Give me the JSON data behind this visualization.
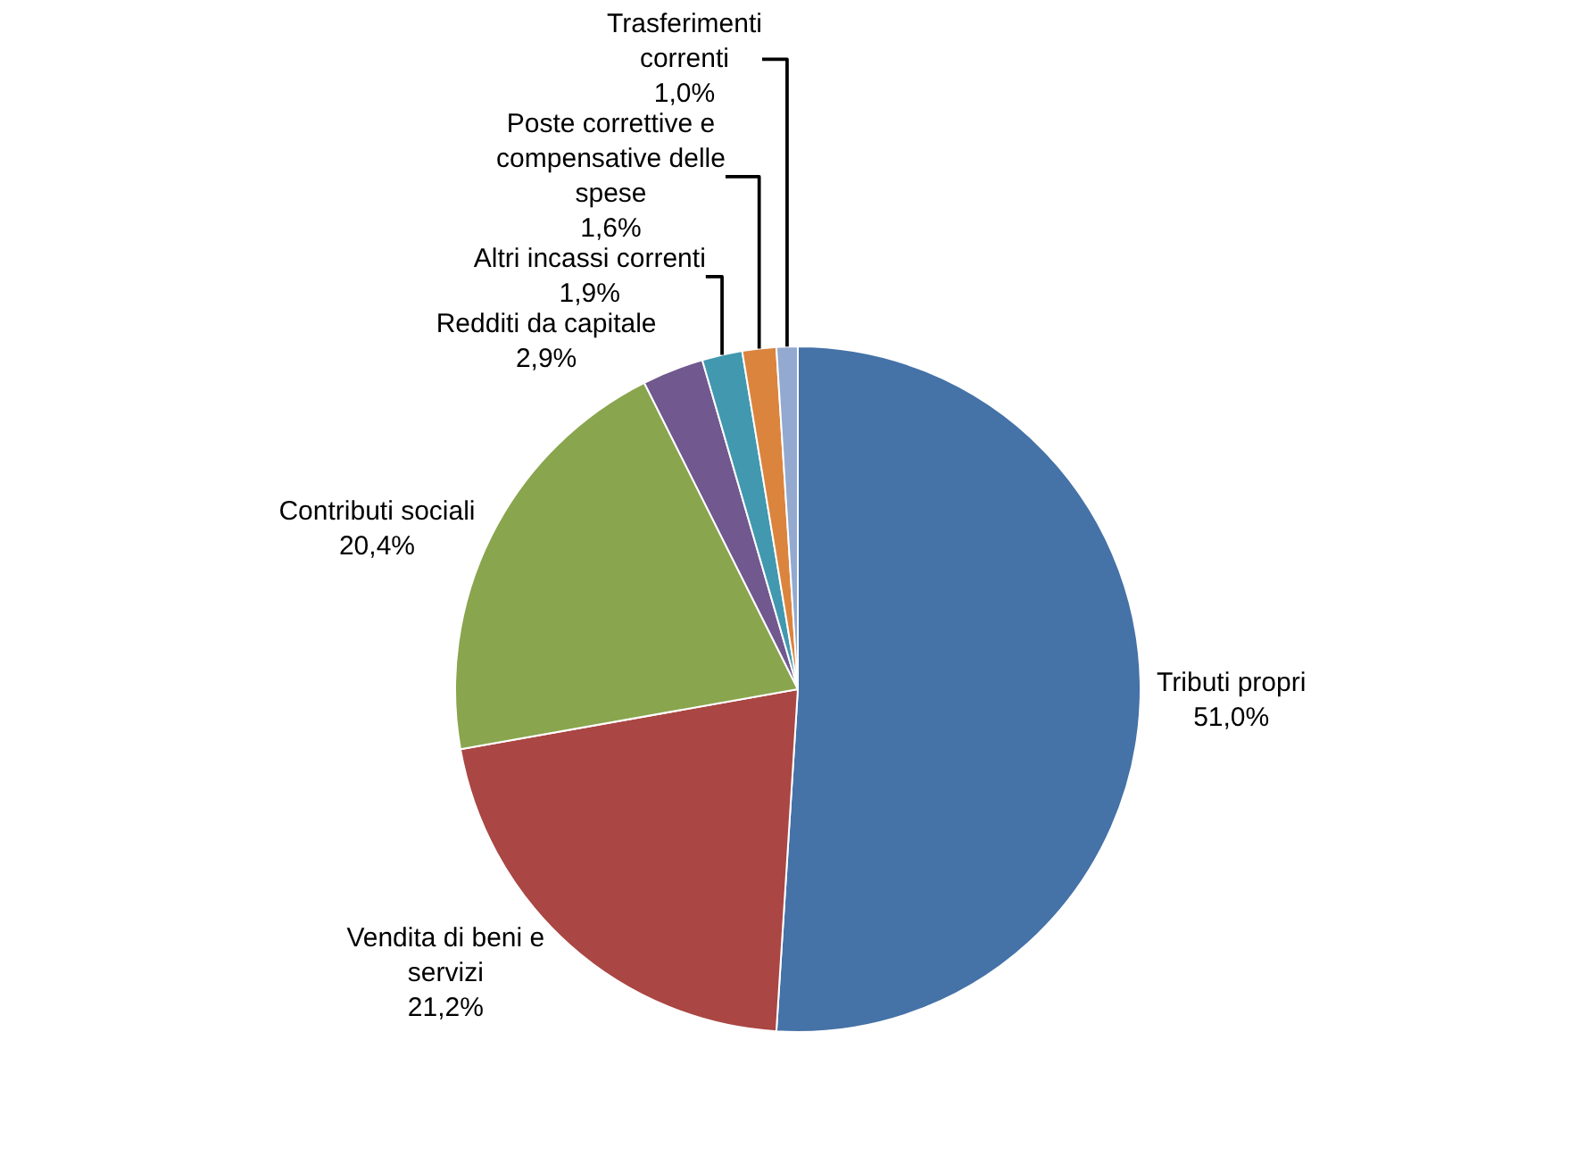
{
  "chart_data": {
    "type": "pie",
    "categories": [
      "Tributi propri",
      "Vendita di beni e\nservizi",
      "Contributi sociali",
      "Redditi da capitale",
      "Altri incassi correnti",
      "Poste correttive e\ncompensative delle\nspese",
      "Trasferimenti\ncorrenti"
    ],
    "values": [
      51.0,
      21.2,
      20.4,
      2.9,
      1.9,
      1.6,
      1.0
    ],
    "value_labels": [
      "51,0%",
      "21,2%",
      "20,4%",
      "2,9%",
      "1,9%",
      "1,6%",
      "1,0%"
    ],
    "colors": [
      "#4572a7",
      "#aa4643",
      "#89a54e",
      "#71588f",
      "#4198af",
      "#db843d",
      "#93a9cf"
    ],
    "legend": false
  }
}
